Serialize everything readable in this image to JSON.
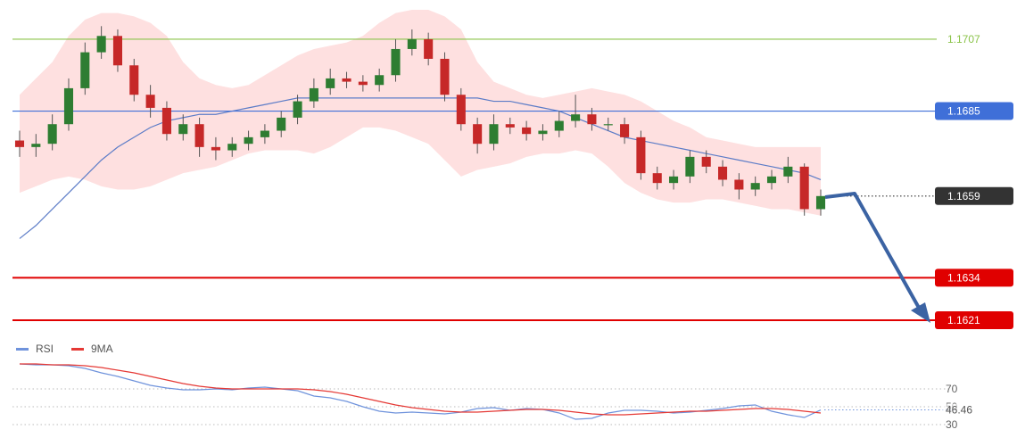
{
  "chart_data": [
    {
      "type": "candlestick",
      "open": [
        1.1676,
        1.1674,
        1.1675,
        1.1681,
        1.1692,
        1.1703,
        1.1708,
        1.1699,
        1.169,
        1.1686,
        1.1678,
        1.1681,
        1.1674,
        1.1673,
        1.1675,
        1.1677,
        1.1679,
        1.1683,
        1.1688,
        1.1692,
        1.1695,
        1.1694,
        1.1693,
        1.1696,
        1.1704,
        1.1707,
        1.1701,
        1.169,
        1.1681,
        1.1675,
        1.1681,
        1.168,
        1.1678,
        1.1679,
        1.1682,
        1.1684,
        1.1681,
        1.1681,
        1.1677,
        1.1666,
        1.1663,
        1.1665,
        1.1671,
        1.1668,
        1.1664,
        1.1661,
        1.1663,
        1.1665,
        1.1668,
        1.1655
      ],
      "high": [
        1.1679,
        1.1678,
        1.1684,
        1.1695,
        1.1706,
        1.1711,
        1.171,
        1.1701,
        1.1693,
        1.1688,
        1.1684,
        1.1683,
        1.1677,
        1.1677,
        1.1679,
        1.1681,
        1.1685,
        1.169,
        1.1695,
        1.1698,
        1.1697,
        1.1696,
        1.1698,
        1.1707,
        1.171,
        1.1709,
        1.1703,
        1.1692,
        1.1683,
        1.1684,
        1.1683,
        1.1682,
        1.1681,
        1.1685,
        1.169,
        1.1686,
        1.1683,
        1.1683,
        1.1679,
        1.1668,
        1.1667,
        1.1673,
        1.1673,
        1.167,
        1.1666,
        1.1665,
        1.1667,
        1.1671,
        1.1669,
        1.1661
      ],
      "low": [
        1.1671,
        1.1671,
        1.1673,
        1.1679,
        1.169,
        1.1701,
        1.1697,
        1.1688,
        1.1683,
        1.1676,
        1.1676,
        1.1671,
        1.167,
        1.1671,
        1.1673,
        1.1675,
        1.1677,
        1.1681,
        1.1686,
        1.169,
        1.1692,
        1.1691,
        1.1691,
        1.1694,
        1.1702,
        1.1699,
        1.1688,
        1.1679,
        1.1672,
        1.1673,
        1.1678,
        1.1676,
        1.1676,
        1.1677,
        1.168,
        1.1679,
        1.1679,
        1.1675,
        1.1664,
        1.1661,
        1.1661,
        1.1663,
        1.1666,
        1.1662,
        1.1658,
        1.1659,
        1.1661,
        1.1663,
        1.1653,
        1.1653
      ],
      "close": [
        1.1674,
        1.1675,
        1.1681,
        1.1692,
        1.1703,
        1.1708,
        1.1699,
        1.169,
        1.1686,
        1.1678,
        1.1681,
        1.1674,
        1.1673,
        1.1675,
        1.1677,
        1.1679,
        1.1683,
        1.1688,
        1.1692,
        1.1695,
        1.1694,
        1.1693,
        1.1696,
        1.1704,
        1.1707,
        1.1701,
        1.169,
        1.1681,
        1.1675,
        1.1681,
        1.168,
        1.1678,
        1.1679,
        1.1682,
        1.1684,
        1.1681,
        1.1681,
        1.1677,
        1.1666,
        1.1663,
        1.1665,
        1.1671,
        1.1668,
        1.1664,
        1.1661,
        1.1663,
        1.1665,
        1.1668,
        1.1655,
        1.1659
      ],
      "up_color": "#2e7d32",
      "down_color": "#c62828",
      "bands": {
        "color": "#fdd6d6",
        "upper": [
          1.169,
          1.1695,
          1.17,
          1.1708,
          1.1713,
          1.1715,
          1.1715,
          1.1714,
          1.1712,
          1.1708,
          1.17,
          1.1695,
          1.1693,
          1.1692,
          1.1693,
          1.1696,
          1.1699,
          1.1702,
          1.1704,
          1.1705,
          1.1706,
          1.1708,
          1.1712,
          1.1715,
          1.1716,
          1.1716,
          1.1714,
          1.171,
          1.17,
          1.1694,
          1.1692,
          1.169,
          1.1689,
          1.169,
          1.1691,
          1.1692,
          1.1691,
          1.169,
          1.1688,
          1.1685,
          1.1682,
          1.168,
          1.1677,
          1.1676,
          1.1675,
          1.1674,
          1.1674,
          1.1674,
          1.1674,
          1.1674
        ],
        "lower": [
          1.166,
          1.1662,
          1.1664,
          1.1665,
          1.1664,
          1.1662,
          1.1661,
          1.1661,
          1.1662,
          1.1664,
          1.1666,
          1.1667,
          1.1668,
          1.167,
          1.1672,
          1.1673,
          1.1673,
          1.1673,
          1.1672,
          1.1674,
          1.1677,
          1.168,
          1.168,
          1.1679,
          1.1677,
          1.1675,
          1.167,
          1.1665,
          1.1667,
          1.1668,
          1.1669,
          1.1671,
          1.1672,
          1.1672,
          1.1673,
          1.1672,
          1.1668,
          1.1663,
          1.166,
          1.1658,
          1.1657,
          1.1657,
          1.1658,
          1.1658,
          1.1657,
          1.1656,
          1.1655,
          1.1655,
          1.1654,
          1.1653
        ]
      },
      "moving_average": {
        "color": "#5c7cc7",
        "values": [
          1.1646,
          1.165,
          1.1655,
          1.166,
          1.1665,
          1.167,
          1.1674,
          1.1677,
          1.168,
          1.1682,
          1.1683,
          1.1684,
          1.1684,
          1.1685,
          1.1686,
          1.1687,
          1.1688,
          1.1689,
          1.1689,
          1.1689,
          1.1689,
          1.1689,
          1.1689,
          1.1689,
          1.1689,
          1.1689,
          1.1689,
          1.1689,
          1.1689,
          1.1688,
          1.1688,
          1.1687,
          1.1686,
          1.1685,
          1.1683,
          1.1681,
          1.1679,
          1.1677,
          1.1676,
          1.1675,
          1.1674,
          1.1673,
          1.1672,
          1.1671,
          1.167,
          1.1669,
          1.1668,
          1.1667,
          1.1666,
          1.1664
        ]
      },
      "ylim": [
        1.1615,
        1.1719
      ],
      "levels": [
        {
          "value": 1.1707,
          "color": "#8bc34a",
          "box": false,
          "style": "solid"
        },
        {
          "value": 1.1685,
          "color": "#3f6fd8",
          "box": true,
          "style": "solid"
        },
        {
          "value": 1.1659,
          "color": "#333333",
          "box": true,
          "style": "dotted"
        },
        {
          "value": 1.1634,
          "color": "#e00000",
          "box": true,
          "style": "solid"
        },
        {
          "value": 1.1621,
          "color": "#e00000",
          "box": true,
          "style": "solid"
        }
      ]
    },
    {
      "type": "line",
      "series": [
        {
          "name": "RSI",
          "color": "#6f93dc",
          "values": [
            98,
            97,
            97,
            96,
            93,
            88,
            84,
            79,
            74,
            71,
            69,
            69,
            70,
            69,
            71,
            72,
            70,
            68,
            62,
            60,
            56,
            50,
            45,
            43,
            44,
            43,
            42,
            44,
            48,
            49,
            46,
            48,
            47,
            43,
            36,
            37,
            43,
            46,
            46,
            45,
            43,
            44,
            46,
            48,
            51,
            52,
            45,
            41,
            38,
            46.46
          ]
        },
        {
          "name": "9MA",
          "color": "#e53935",
          "values": [
            98,
            98,
            97,
            97,
            96,
            94,
            91,
            88,
            84,
            80,
            76,
            73,
            71,
            70,
            70,
            70,
            70,
            70,
            69,
            67,
            64,
            60,
            56,
            52,
            49,
            47,
            45,
            44,
            44,
            45,
            46,
            47,
            47,
            46,
            44,
            42,
            41,
            41,
            42,
            43,
            44,
            45,
            45,
            46,
            47,
            48,
            48,
            47,
            45,
            43
          ]
        }
      ],
      "ylim": [
        16,
        106
      ],
      "yticks": [
        30,
        50,
        70
      ]
    }
  ]
}
